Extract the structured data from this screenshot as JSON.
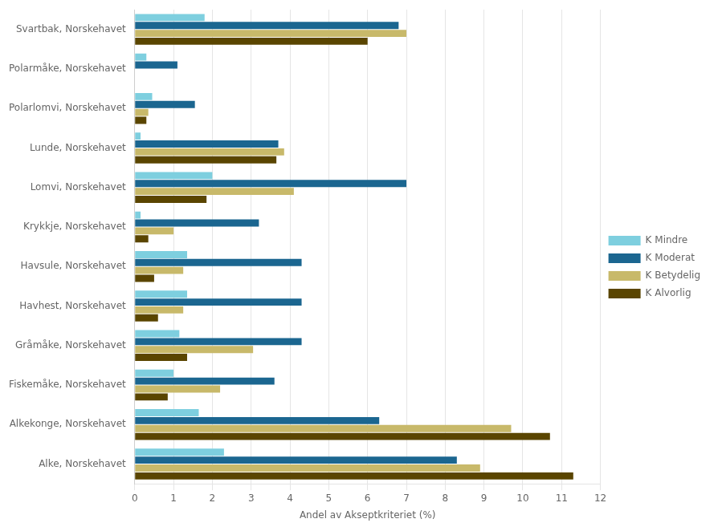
{
  "chart_data": {
    "type": "bar",
    "orientation": "horizontal",
    "xlabel": "Andel av Akseptkriteriet (%)",
    "categories": [
      "Svartbak, Norskehavet",
      "Polarmåke, Norskehavet",
      "Polarlomvi, Norskehavet",
      "Lunde, Norskehavet",
      "Lomvi, Norskehavet",
      "Krykkje, Norskehavet",
      "Havsule, Norskehavet",
      "Havhest, Norskehavet",
      "Gråmåke, Norskehavet",
      "Fiskemåke, Norskehavet",
      "Alkekonge, Norskehavet",
      "Alke, Norskehavet"
    ],
    "series": [
      {
        "name": "K Mindre",
        "color": "#7ecfdf",
        "values": [
          1.8,
          0.3,
          0.45,
          0.15,
          2.0,
          0.15,
          1.35,
          1.35,
          1.15,
          1.0,
          1.65,
          2.3
        ]
      },
      {
        "name": "K Moderat",
        "color": "#1b6690",
        "values": [
          6.8,
          1.1,
          1.55,
          3.7,
          7.0,
          3.2,
          4.3,
          4.3,
          4.3,
          3.6,
          6.3,
          8.3
        ]
      },
      {
        "name": "K Betydelig",
        "color": "#c8b96a",
        "values": [
          7.0,
          0.0,
          0.35,
          3.85,
          4.1,
          1.0,
          1.25,
          1.25,
          3.05,
          2.2,
          9.7,
          8.9
        ]
      },
      {
        "name": "K Alvorlig",
        "color": "#5a4500",
        "values": [
          6.0,
          0.0,
          0.3,
          3.65,
          1.85,
          0.35,
          0.5,
          0.6,
          1.35,
          0.85,
          10.7,
          11.3
        ]
      }
    ],
    "xlim": [
      0,
      12
    ],
    "xticks": [
      0,
      1,
      2,
      3,
      4,
      5,
      6,
      7,
      8,
      9,
      10,
      11,
      12
    ],
    "grid": "x",
    "legend": "right"
  }
}
